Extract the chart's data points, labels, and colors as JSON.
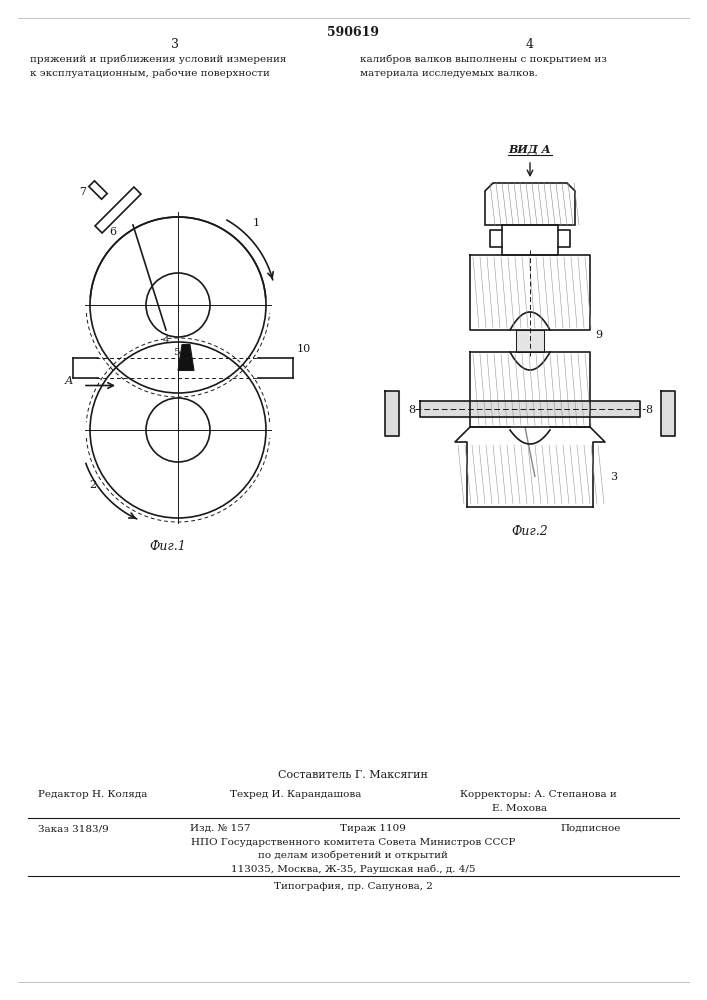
{
  "patent_number": "590619",
  "page_left": "3",
  "page_right": "4",
  "text_left": "пряжений и приближения условий измерения\nк эксплуатационным, рабочие поверхности",
  "text_right": "калибров валков выполнены с покрытием из\nматериала исследуемых валков.",
  "fig1_label": "Фиг.1",
  "fig2_label": "Фиг.2",
  "vid_label": "ВИД А",
  "footer_composer": "Составитель Г. Максягин",
  "footer_editor": "Редактор Н. Коляда",
  "footer_techred": "Техред И. Карандашова",
  "footer_correctors": "Корректоры: А. Степанова и\n              Е. Мохова",
  "footer_order": "Заказ 3183/9",
  "footer_issue": "Изд. № 157",
  "footer_copies": "Тираж 1109",
  "footer_subscription": "Подписное",
  "footer_npo": "НПО Государственного комитета Совета Министров СССР",
  "footer_npo2": "по делам изобретений и открытий",
  "footer_address": "113035, Москва, Ж-35, Раушская наб., д. 4/5",
  "footer_typography": "Типография, пр. Сапунова, 2",
  "bg_color": "#ffffff",
  "text_color": "#1a1a1a"
}
